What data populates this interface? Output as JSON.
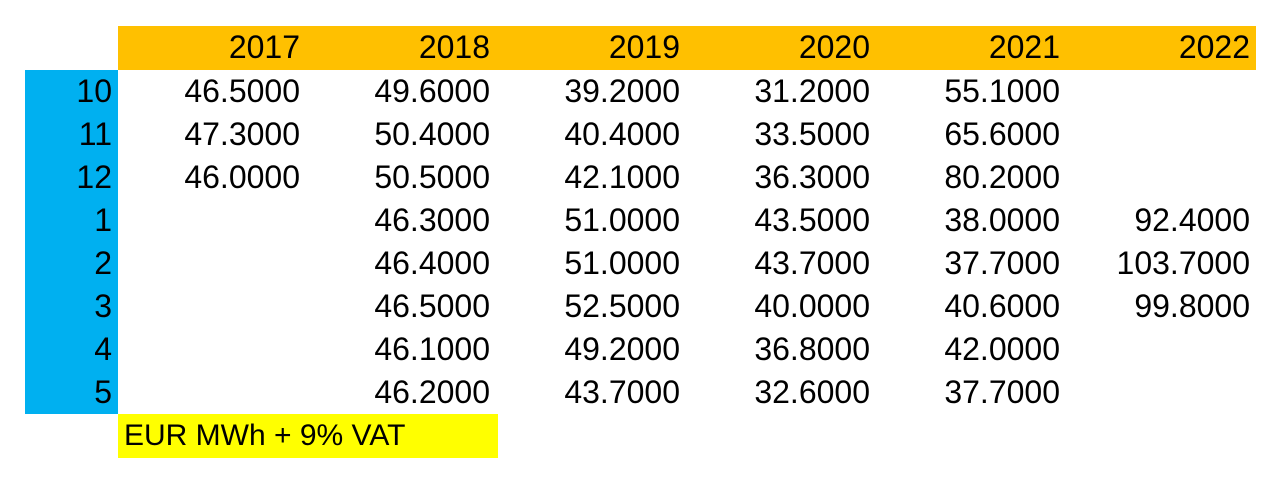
{
  "table": {
    "years": [
      "2017",
      "2018",
      "2019",
      "2020",
      "2021",
      "2022"
    ],
    "rows": [
      {
        "label": "10",
        "values": [
          "46.5000",
          "49.6000",
          "39.2000",
          "31.2000",
          "55.1000",
          ""
        ]
      },
      {
        "label": "11",
        "values": [
          "47.3000",
          "50.4000",
          "40.4000",
          "33.5000",
          "65.6000",
          ""
        ]
      },
      {
        "label": "12",
        "values": [
          "46.0000",
          "50.5000",
          "42.1000",
          "36.3000",
          "80.2000",
          ""
        ]
      },
      {
        "label": "1",
        "values": [
          "",
          "46.3000",
          "51.0000",
          "43.5000",
          "38.0000",
          "92.4000"
        ]
      },
      {
        "label": "2",
        "values": [
          "",
          "46.4000",
          "51.0000",
          "43.7000",
          "37.7000",
          "103.7000"
        ]
      },
      {
        "label": "3",
        "values": [
          "",
          "46.5000",
          "52.5000",
          "40.0000",
          "40.6000",
          "99.8000"
        ]
      },
      {
        "label": "4",
        "values": [
          "",
          "46.1000",
          "49.2000",
          "36.8000",
          "42.0000",
          ""
        ]
      },
      {
        "label": "5",
        "values": [
          "",
          "46.2000",
          "43.7000",
          "32.6000",
          "37.7000",
          ""
        ]
      }
    ],
    "footnote": "EUR MWh + 9% VAT"
  },
  "colors": {
    "header_background": "#ffc000",
    "row_label_background": "#00b0f0",
    "footnote_background": "#ffff00"
  }
}
